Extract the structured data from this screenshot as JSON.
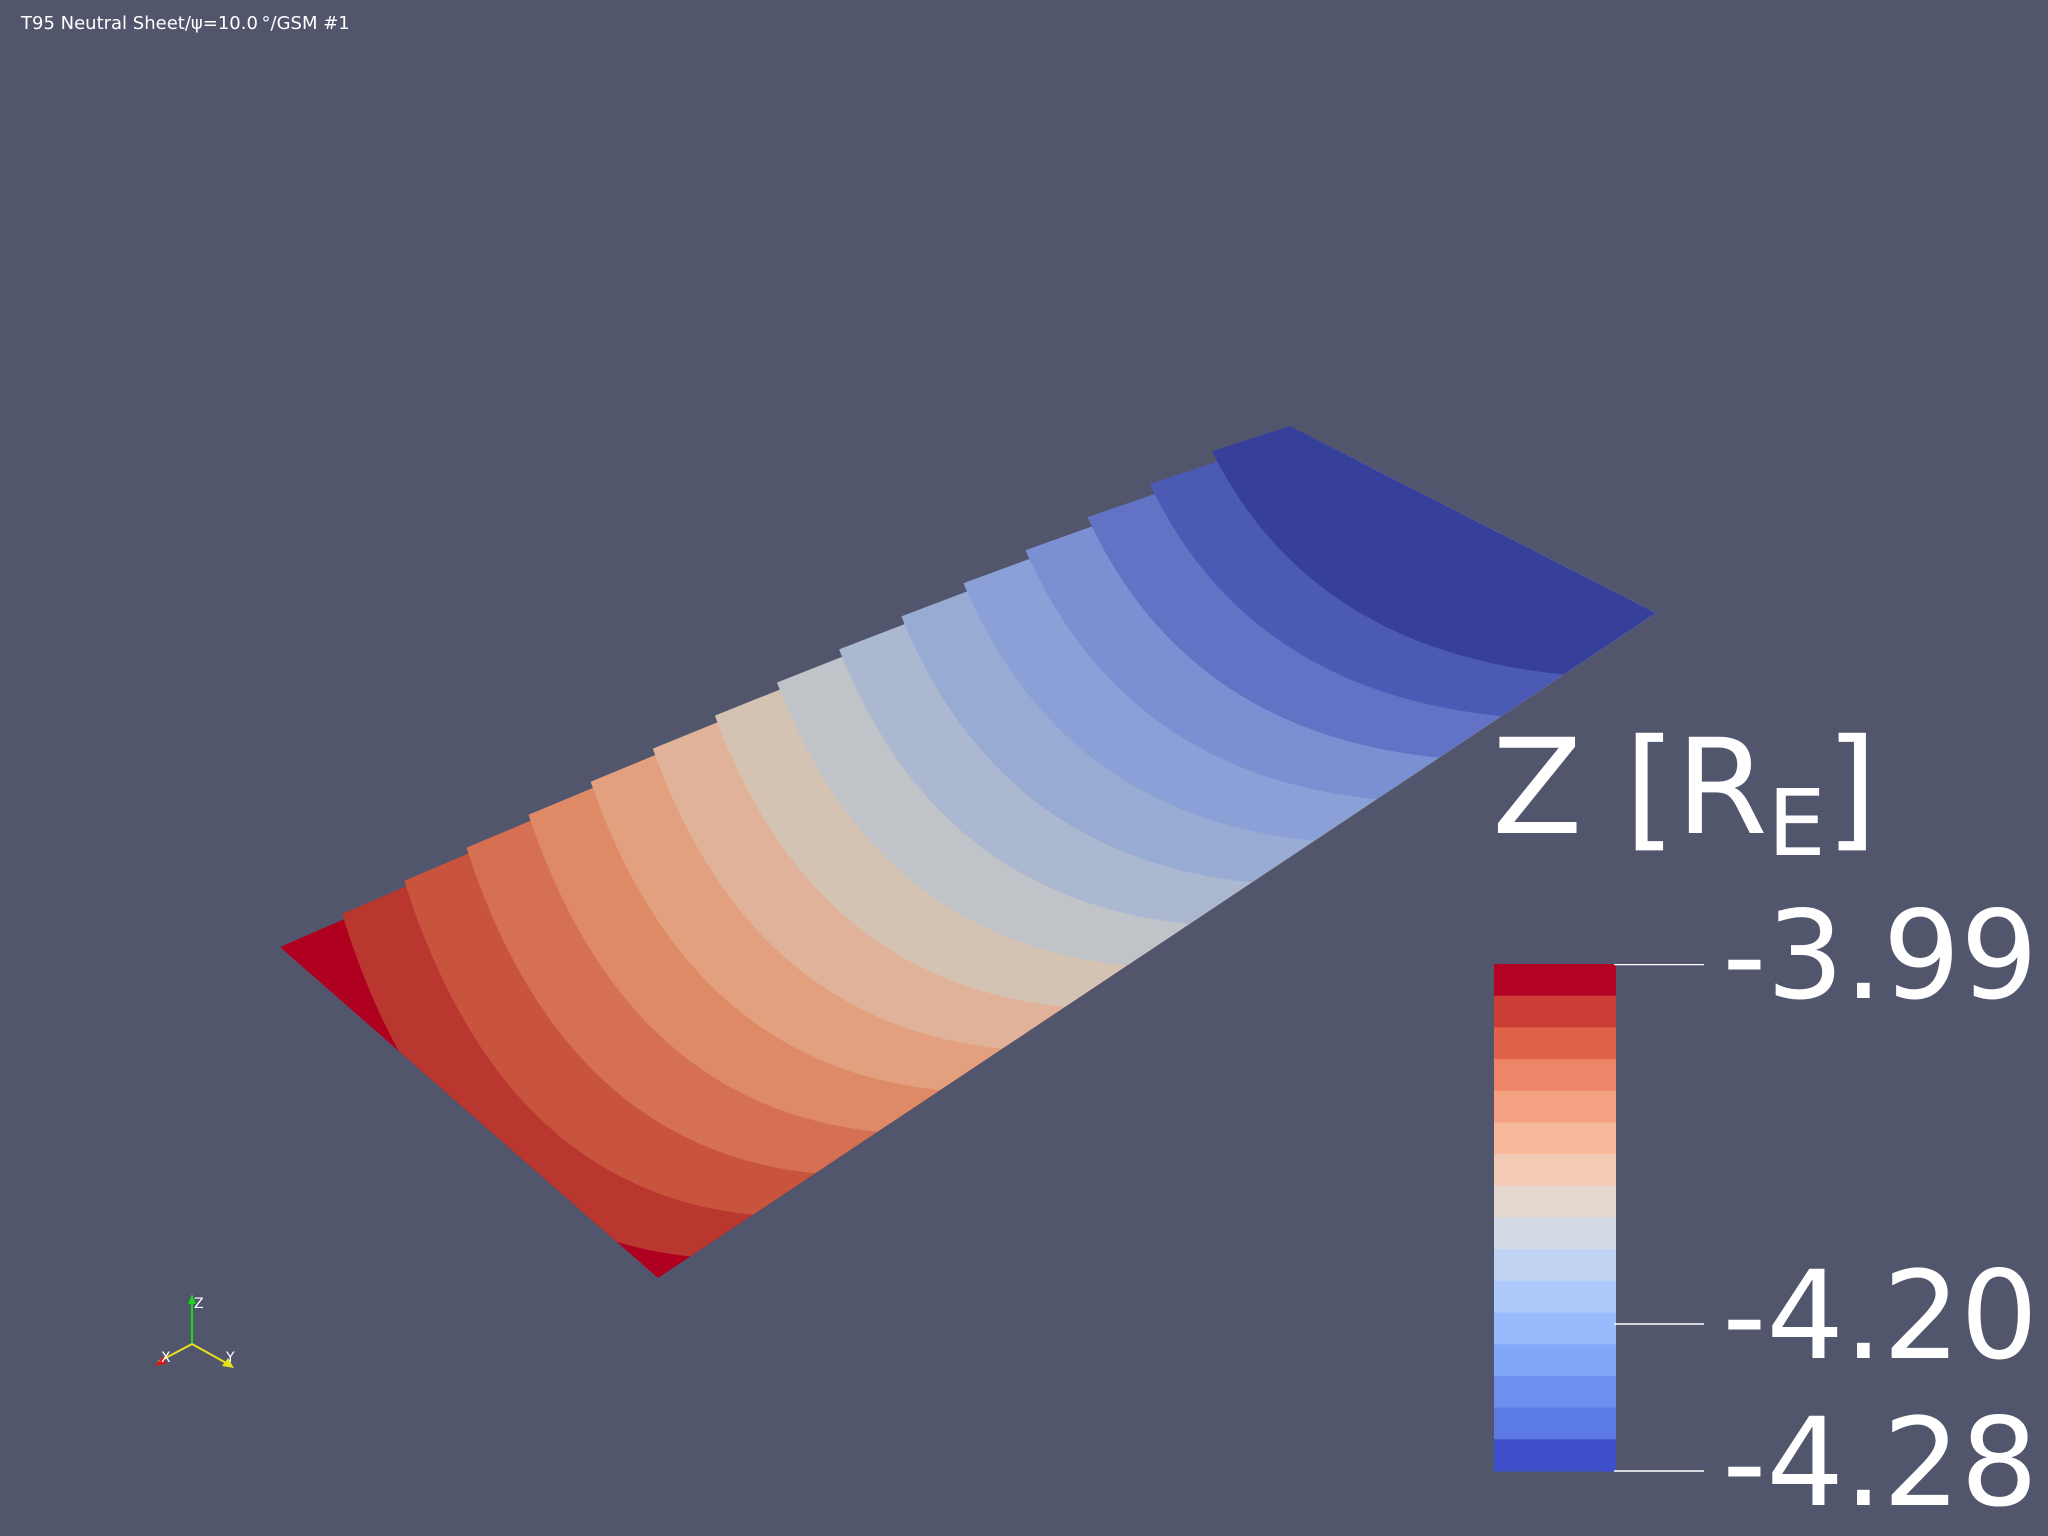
{
  "title": "T95 Neutral Sheet/ψ=10.0 °/GSM #1",
  "colorbar": {
    "variable": "Z [R",
    "unit_subscript": "E",
    "closing": "]",
    "tick_labels": [
      "-3.99",
      "-4.20",
      "-4.28"
    ],
    "colors": [
      "#b40426",
      "#cc3d35",
      "#e06349",
      "#ef8568",
      "#f5a283",
      "#f7b89b",
      "#f2cab5",
      "#e4d8d0",
      "#d4dbe6",
      "#c1d3f3",
      "#aec9fb",
      "#99bbfd",
      "#82a6f9",
      "#6e8fee",
      "#5b7ae4",
      "#3f4fc9"
    ]
  },
  "sheet_colors": [
    "#b00020",
    "#b9372f",
    "#c8543e",
    "#d57053",
    "#de8a66",
    "#e2a07f",
    "#e1b29a",
    "#d4c2b2",
    "#c0c4c9",
    "#abb8cf",
    "#98abd3",
    "#8aa0d6",
    "#7b8fd3",
    "#6273c6",
    "#4a5ab5",
    "#36409a"
  ],
  "axes": {
    "x_label": "X",
    "y_label": "Y",
    "z_label": "Z",
    "x_color": "#d61a1a",
    "y_color": "#e8e01c",
    "z_color": "#1ad41a"
  }
}
